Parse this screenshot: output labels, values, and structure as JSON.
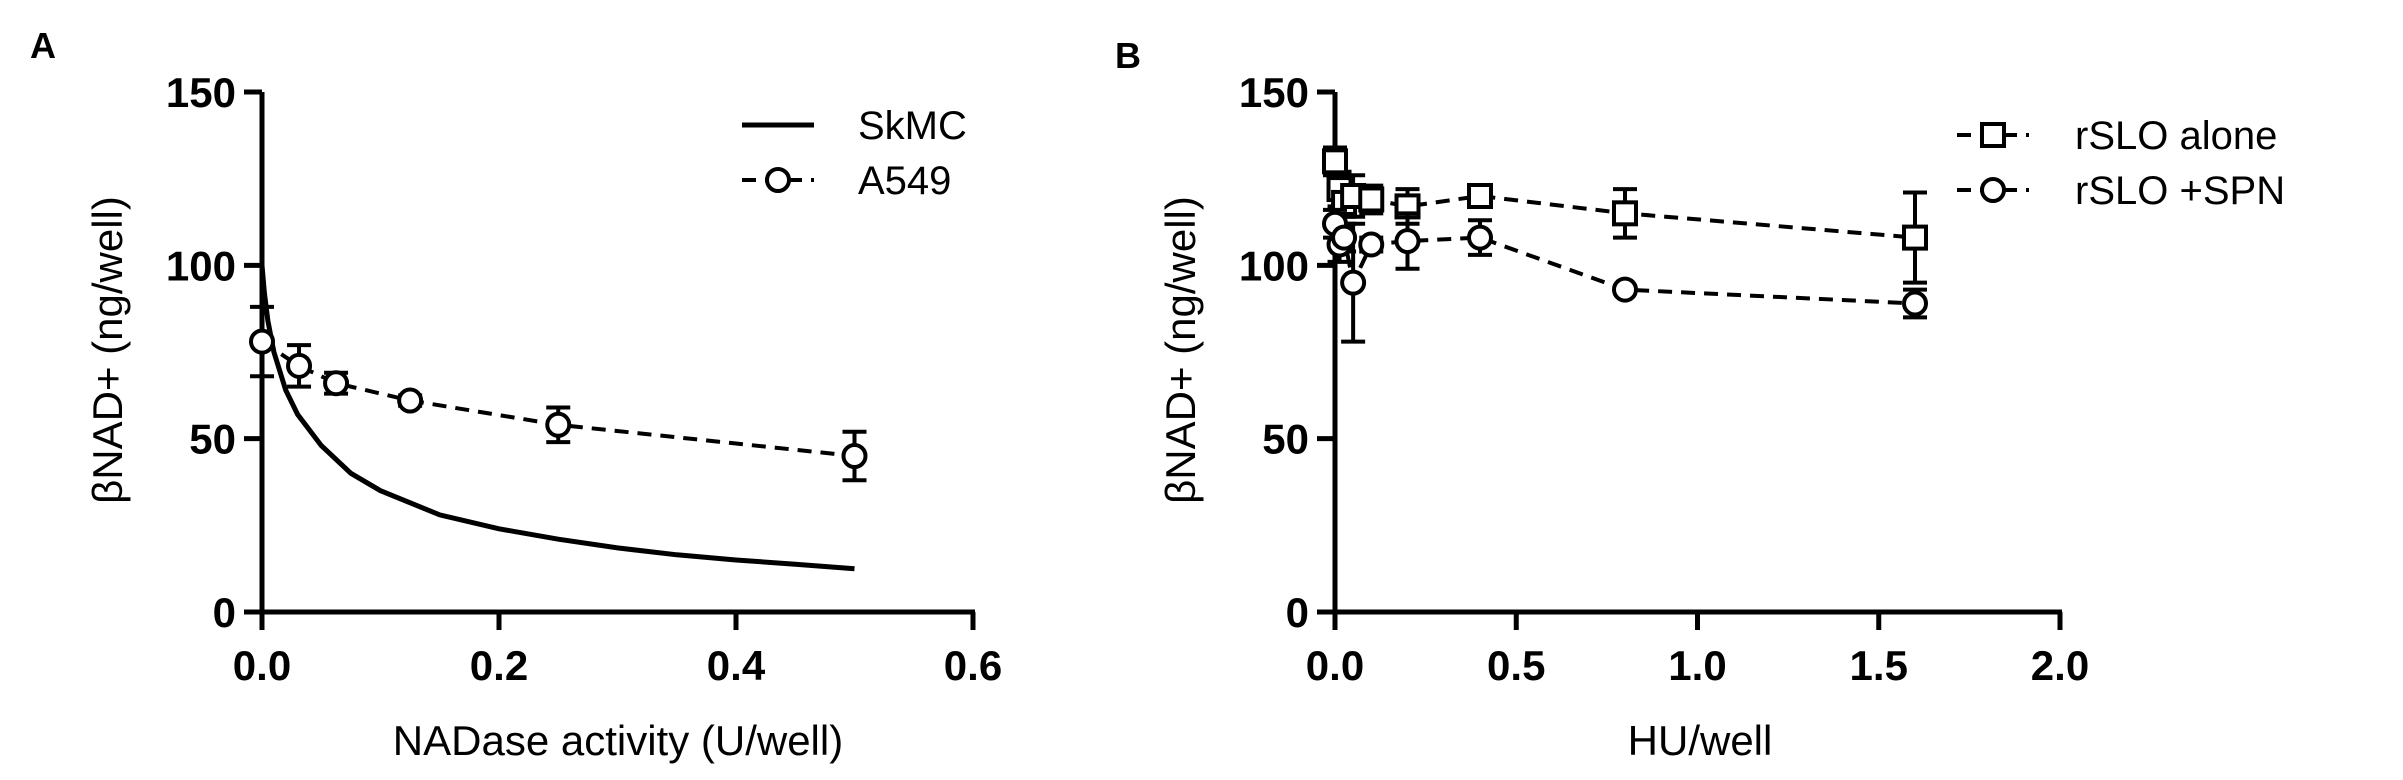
{
  "figure": {
    "panels": [
      "A",
      "B"
    ]
  },
  "chart_data": [
    {
      "panel": "A",
      "type": "line",
      "title": "",
      "xlabel": "NADase activity (U/well)",
      "ylabel": "βNAD+ (ng/well)",
      "xlim": [
        0.0,
        0.6
      ],
      "ylim": [
        0,
        150
      ],
      "xticks": [
        "0.0",
        "0.2",
        "0.4",
        "0.6"
      ],
      "xtick_values": [
        0.0,
        0.2,
        0.4,
        0.6
      ],
      "yticks": [
        "0",
        "50",
        "100",
        "150"
      ],
      "ytick_values": [
        0,
        50,
        100,
        150
      ],
      "legend_position": "top-right",
      "series": [
        {
          "name": "SkMC",
          "style": "solid-line",
          "x": [
            0.0,
            0.002,
            0.005,
            0.01,
            0.02,
            0.03,
            0.05,
            0.075,
            0.1,
            0.15,
            0.2,
            0.25,
            0.3,
            0.35,
            0.4,
            0.45,
            0.5
          ],
          "y": [
            100,
            92,
            84,
            75,
            64,
            57,
            48,
            40,
            35,
            28,
            24,
            21,
            18.5,
            16.5,
            15,
            13.8,
            12.5
          ]
        },
        {
          "name": "A549",
          "style": "dashed-circle",
          "x": [
            0.0,
            0.03125,
            0.0625,
            0.125,
            0.25,
            0.5
          ],
          "y": [
            78,
            71,
            66,
            61,
            54,
            45
          ],
          "error": [
            10,
            6,
            3,
            1.5,
            5,
            7
          ]
        }
      ]
    },
    {
      "panel": "B",
      "type": "line",
      "title": "",
      "xlabel": "HU/well",
      "ylabel": "βNAD+ (ng/well)",
      "xlim": [
        0.0,
        2.0
      ],
      "ylim": [
        0,
        150
      ],
      "xticks": [
        "0.0",
        "0.5",
        "1.0",
        "1.5",
        "2.0"
      ],
      "xtick_values": [
        0.0,
        0.5,
        1.0,
        1.5,
        2.0
      ],
      "yticks": [
        "0",
        "50",
        "100",
        "150"
      ],
      "ytick_values": [
        0,
        50,
        100,
        150
      ],
      "legend_position": "top-right",
      "series": [
        {
          "name": "rSLO alone",
          "style": "dashed-square",
          "x": [
            0.0,
            0.0125,
            0.025,
            0.05,
            0.1,
            0.2,
            0.4,
            0.8,
            1.6
          ],
          "y": [
            130,
            122,
            118,
            120,
            119,
            117,
            120,
            115,
            108
          ],
          "error": [
            4,
            5,
            4,
            6,
            4,
            5,
            2,
            7,
            13
          ]
        },
        {
          "name": "rSLO +SPN",
          "style": "dashed-circle",
          "x": [
            0.0,
            0.0125,
            0.025,
            0.05,
            0.1,
            0.2,
            0.4,
            0.8,
            1.6
          ],
          "y": [
            112,
            106,
            108,
            95,
            106,
            107,
            108,
            93,
            89
          ],
          "error": [
            4,
            5,
            4,
            17,
            2,
            8,
            5,
            1,
            4
          ]
        }
      ]
    }
  ]
}
